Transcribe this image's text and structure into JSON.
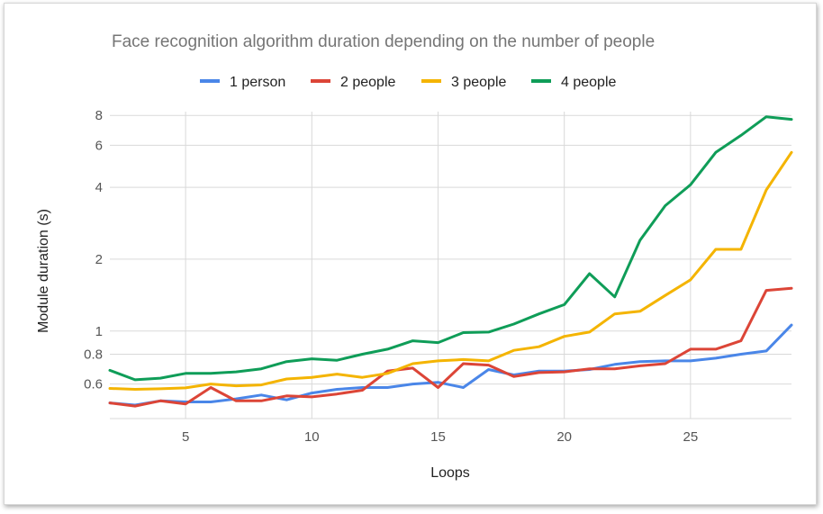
{
  "chart_data": {
    "type": "line",
    "title": "Face recognition algorithm duration depending on the number of people",
    "xlabel": "Loops",
    "ylabel": "Module duration (s)",
    "xlim": [
      2,
      29
    ],
    "ylim": [
      0.43,
      8.3
    ],
    "yscale": "log",
    "x_ticks": [
      5,
      10,
      15,
      20,
      25
    ],
    "y_ticks": [
      0.6,
      0.8,
      1,
      2,
      4,
      6,
      8
    ],
    "x_tick_labels": [
      "5",
      "10",
      "15",
      "20",
      "25"
    ],
    "y_tick_labels": [
      "0.6",
      "0.8",
      "1",
      "2",
      "4",
      "6",
      "8"
    ],
    "grid": true,
    "legend_position": "top",
    "x": [
      2,
      3,
      4,
      5,
      6,
      7,
      8,
      9,
      10,
      11,
      12,
      13,
      14,
      15,
      16,
      17,
      18,
      19,
      20,
      21,
      22,
      23,
      24,
      25,
      26,
      27,
      28,
      29
    ],
    "series": [
      {
        "name": "1 person",
        "color": "#4a86e8",
        "values": [
          0.5,
          0.49,
          0.51,
          0.505,
          0.505,
          0.52,
          0.54,
          0.515,
          0.55,
          0.57,
          0.58,
          0.58,
          0.6,
          0.61,
          0.58,
          0.69,
          0.655,
          0.68,
          0.68,
          0.69,
          0.725,
          0.745,
          0.75,
          0.75,
          0.77,
          0.8,
          0.825,
          1.06
        ]
      },
      {
        "name": "2 people",
        "color": "#dc4537",
        "values": [
          0.5,
          0.485,
          0.51,
          0.495,
          0.58,
          0.51,
          0.51,
          0.535,
          0.53,
          0.545,
          0.565,
          0.68,
          0.7,
          0.58,
          0.73,
          0.72,
          0.645,
          0.67,
          0.675,
          0.695,
          0.695,
          0.715,
          0.73,
          0.84,
          0.84,
          0.91,
          1.48,
          1.51
        ]
      },
      {
        "name": "3 people",
        "color": "#f4b400",
        "values": [
          0.575,
          0.57,
          0.573,
          0.578,
          0.6,
          0.59,
          0.595,
          0.63,
          0.64,
          0.66,
          0.64,
          0.665,
          0.73,
          0.75,
          0.76,
          0.75,
          0.83,
          0.86,
          0.95,
          0.99,
          1.18,
          1.21,
          1.41,
          1.64,
          2.2,
          2.2,
          3.9,
          5.6
        ]
      },
      {
        "name": "4 people",
        "color": "#0f9d58",
        "values": [
          0.685,
          0.625,
          0.635,
          0.665,
          0.665,
          0.675,
          0.695,
          0.745,
          0.765,
          0.755,
          0.8,
          0.84,
          0.91,
          0.895,
          0.985,
          0.99,
          1.07,
          1.18,
          1.29,
          1.74,
          1.39,
          2.4,
          3.35,
          4.1,
          5.6,
          6.6,
          7.9,
          7.7
        ]
      }
    ]
  }
}
